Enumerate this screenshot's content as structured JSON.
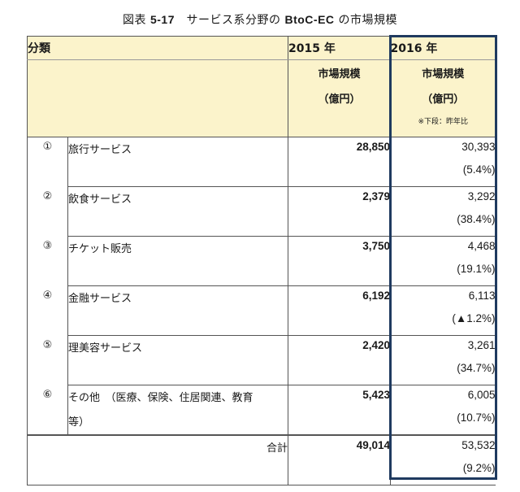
{
  "title": {
    "prefix": "図表 ",
    "number": "5-17",
    "middle": "　サービス系分野の ",
    "term": "BtoC-EC",
    "suffix": " の市場規模"
  },
  "header": {
    "category": "分類",
    "year2015": "2015 年",
    "year2016": "2016 年",
    "market_size": "市場規模",
    "unit": "（億円）",
    "note": "※下段：昨年比"
  },
  "rows": [
    {
      "num": "①",
      "name": "旅行サービス",
      "name2": "",
      "v2015": "28,850",
      "v2016": "30,393",
      "yoy": "(5.4%)"
    },
    {
      "num": "②",
      "name": "飲食サービス",
      "name2": "",
      "v2015": "2,379",
      "v2016": "3,292",
      "yoy": "(38.4%)"
    },
    {
      "num": "③",
      "name": "チケット販売",
      "name2": "",
      "v2015": "3,750",
      "v2016": "4,468",
      "yoy": "(19.1%)"
    },
    {
      "num": "④",
      "name": "金融サービス",
      "name2": "",
      "v2015": "6,192",
      "v2016": "6,113",
      "yoy": "(▲1.2%)"
    },
    {
      "num": "⑤",
      "name": "理美容サービス",
      "name2": "",
      "v2015": "2,420",
      "v2016": "3,261",
      "yoy": "(34.7%)"
    },
    {
      "num": "⑥",
      "name": "その他　（医療、保険、住居関連、教育",
      "name2": "等）",
      "v2015": "5,423",
      "v2016": "6,005",
      "yoy": "(10.7%)"
    }
  ],
  "total": {
    "label": "合計",
    "v2015": "49,014",
    "v2016": "53,532",
    "yoy": "(9.2%)"
  },
  "colors": {
    "header_bg": "#fbf3cb",
    "highlight_border": "#1f3a5f"
  }
}
